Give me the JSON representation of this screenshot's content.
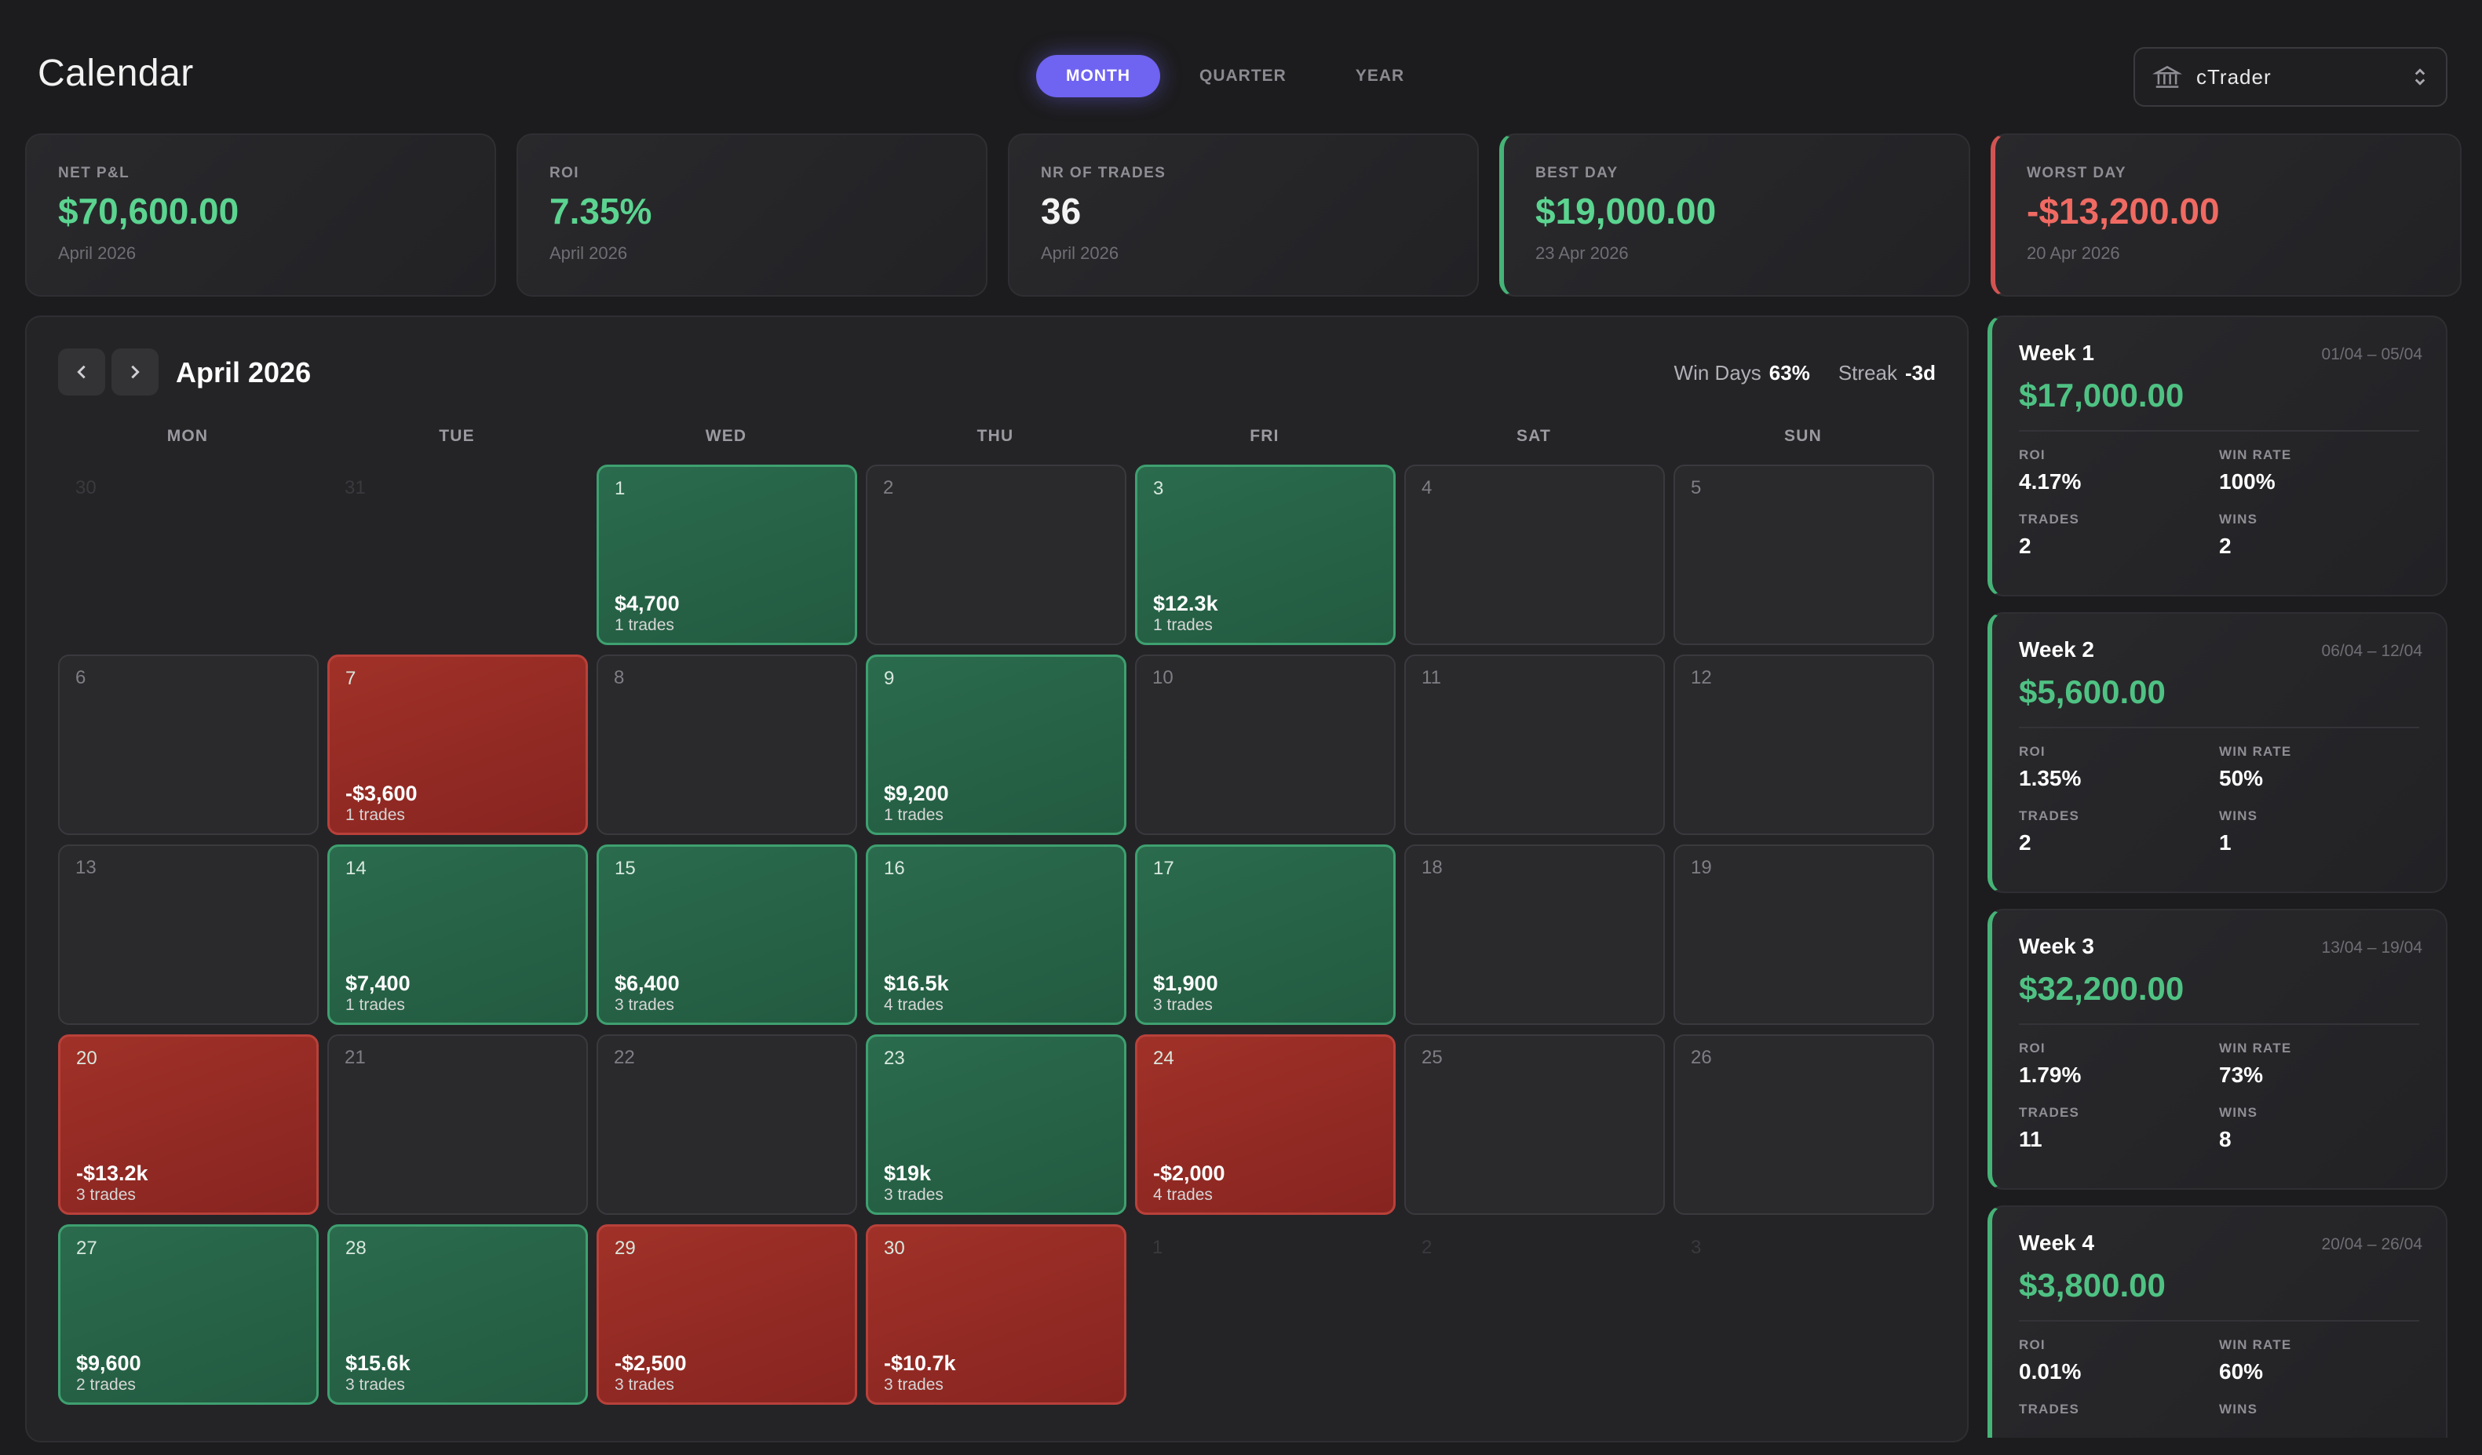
{
  "header": {
    "title": "Calendar",
    "tabs": [
      {
        "label": "MONTH",
        "active": true
      },
      {
        "label": "QUARTER",
        "active": false
      },
      {
        "label": "YEAR",
        "active": false
      }
    ],
    "account": {
      "name": "cTrader",
      "icon": "bank-icon"
    }
  },
  "stats": [
    {
      "label": "NET P&L",
      "value": "$70,600.00",
      "sub": "April 2026",
      "tone": "green"
    },
    {
      "label": "ROI",
      "value": "7.35%",
      "sub": "April 2026",
      "tone": "green"
    },
    {
      "label": "NR OF TRADES",
      "value": "36",
      "sub": "April 2026",
      "tone": "white"
    },
    {
      "label": "BEST DAY",
      "value": "$19,000.00",
      "sub": "23 Apr 2026",
      "tone": "green"
    },
    {
      "label": "WORST DAY",
      "value": "-$13,200.00",
      "sub": "20 Apr 2026",
      "tone": "red"
    }
  ],
  "calendar": {
    "month": "April 2026",
    "win_days_label": "Win Days",
    "win_days_value": "63%",
    "streak_label": "Streak",
    "streak_value": "-3d",
    "weekdays": [
      "MON",
      "TUE",
      "WED",
      "THU",
      "FRI",
      "SAT",
      "SUN"
    ],
    "days": [
      {
        "num": "30",
        "state": "empty"
      },
      {
        "num": "31",
        "state": "empty"
      },
      {
        "num": "1",
        "state": "pos",
        "amount": "$4,700",
        "trades": "1 trades"
      },
      {
        "num": "2",
        "state": "none"
      },
      {
        "num": "3",
        "state": "pos",
        "amount": "$12.3k",
        "trades": "1 trades"
      },
      {
        "num": "4",
        "state": "none"
      },
      {
        "num": "5",
        "state": "none"
      },
      {
        "num": "6",
        "state": "none"
      },
      {
        "num": "7",
        "state": "neg",
        "amount": "-$3,600",
        "trades": "1 trades"
      },
      {
        "num": "8",
        "state": "none"
      },
      {
        "num": "9",
        "state": "pos",
        "amount": "$9,200",
        "trades": "1 trades"
      },
      {
        "num": "10",
        "state": "none"
      },
      {
        "num": "11",
        "state": "none"
      },
      {
        "num": "12",
        "state": "none"
      },
      {
        "num": "13",
        "state": "none"
      },
      {
        "num": "14",
        "state": "pos",
        "amount": "$7,400",
        "trades": "1 trades"
      },
      {
        "num": "15",
        "state": "pos",
        "amount": "$6,400",
        "trades": "3 trades"
      },
      {
        "num": "16",
        "state": "pos",
        "amount": "$16.5k",
        "trades": "4 trades"
      },
      {
        "num": "17",
        "state": "pos",
        "amount": "$1,900",
        "trades": "3 trades"
      },
      {
        "num": "18",
        "state": "none"
      },
      {
        "num": "19",
        "state": "none"
      },
      {
        "num": "20",
        "state": "neg",
        "amount": "-$13.2k",
        "trades": "3 trades"
      },
      {
        "num": "21",
        "state": "none"
      },
      {
        "num": "22",
        "state": "none"
      },
      {
        "num": "23",
        "state": "pos",
        "amount": "$19k",
        "trades": "3 trades"
      },
      {
        "num": "24",
        "state": "neg",
        "amount": "-$2,000",
        "trades": "4 trades"
      },
      {
        "num": "25",
        "state": "none"
      },
      {
        "num": "26",
        "state": "none"
      },
      {
        "num": "27",
        "state": "pos",
        "amount": "$9,600",
        "trades": "2 trades"
      },
      {
        "num": "28",
        "state": "pos",
        "amount": "$15.6k",
        "trades": "3 trades"
      },
      {
        "num": "29",
        "state": "neg",
        "amount": "-$2,500",
        "trades": "3 trades"
      },
      {
        "num": "30",
        "state": "neg",
        "amount": "-$10.7k",
        "trades": "3 trades"
      },
      {
        "num": "1",
        "state": "empty"
      },
      {
        "num": "2",
        "state": "empty"
      },
      {
        "num": "3",
        "state": "empty"
      }
    ]
  },
  "weeks": [
    {
      "label": "Week 1",
      "range": "01/04 – 05/04",
      "value": "$17,000.00",
      "roi_label": "ROI",
      "roi": "4.17%",
      "win_rate_label": "WIN RATE",
      "win_rate": "100%",
      "trades_label": "TRADES",
      "trades": "2",
      "wins_label": "WINS",
      "wins": "2"
    },
    {
      "label": "Week 2",
      "range": "06/04 – 12/04",
      "value": "$5,600.00",
      "roi_label": "ROI",
      "roi": "1.35%",
      "win_rate_label": "WIN RATE",
      "win_rate": "50%",
      "trades_label": "TRADES",
      "trades": "2",
      "wins_label": "WINS",
      "wins": "1"
    },
    {
      "label": "Week 3",
      "range": "13/04 – 19/04",
      "value": "$32,200.00",
      "roi_label": "ROI",
      "roi": "1.79%",
      "win_rate_label": "WIN RATE",
      "win_rate": "73%",
      "trades_label": "TRADES",
      "trades": "11",
      "wins_label": "WINS",
      "wins": "8"
    },
    {
      "label": "Week 4",
      "range": "20/04 – 26/04",
      "value": "$3,800.00",
      "roi_label": "ROI",
      "roi": "0.01%",
      "win_rate_label": "WIN RATE",
      "win_rate": "60%",
      "trades_label": "TRADES",
      "trades": "",
      "wins_label": "WINS",
      "wins": ""
    }
  ],
  "colors": {
    "accent": "#6f63f2",
    "profit": "#5bd490",
    "loss": "#ef6a62"
  }
}
